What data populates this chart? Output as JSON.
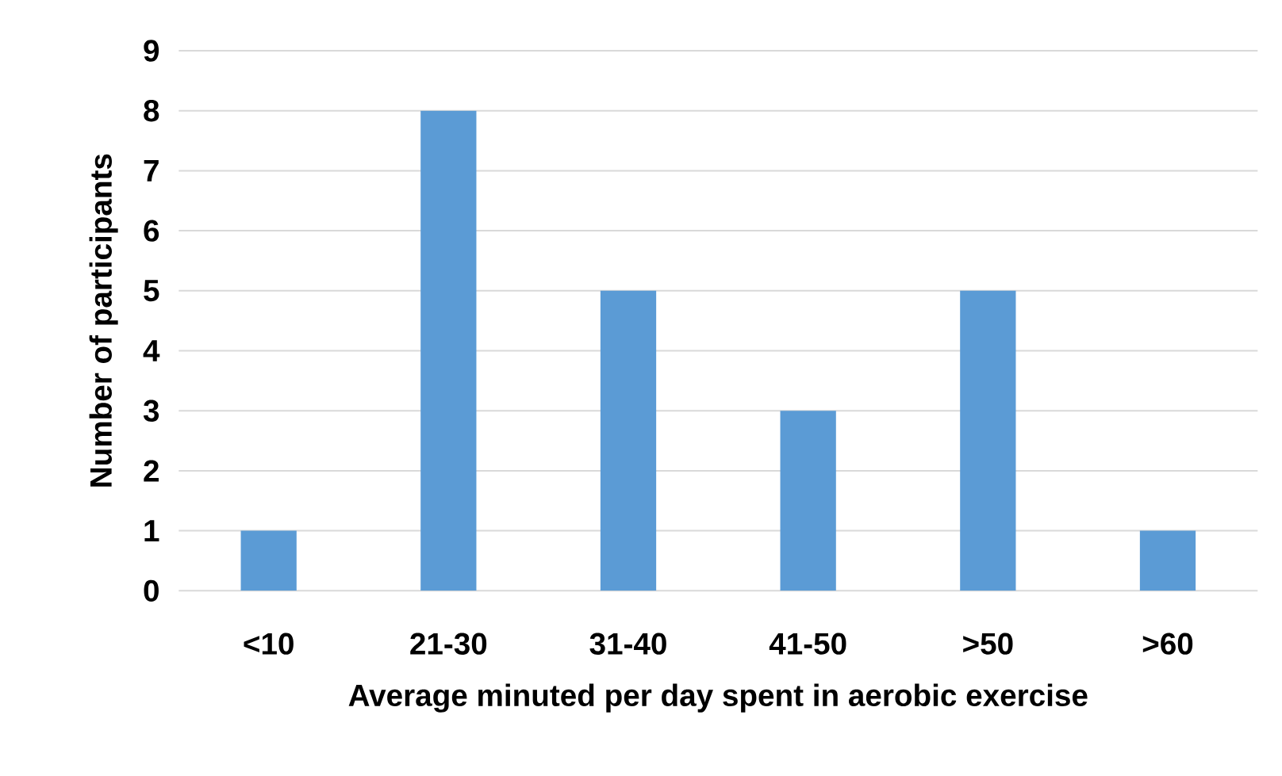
{
  "chart_data": {
    "type": "bar",
    "xlabel": "Average minuted per day spent in aerobic exercise",
    "ylabel": "Number of participants",
    "categories": [
      "<10",
      "21-30",
      "31-40",
      "41-50",
      ">50",
      ">60"
    ],
    "values": [
      1,
      8,
      5,
      3,
      5,
      1
    ],
    "color": "#5b9bd5",
    "ylim": [
      0,
      9
    ],
    "yticks": [
      0,
      1,
      2,
      3,
      4,
      5,
      6,
      7,
      8,
      9
    ],
    "grid": "y"
  }
}
